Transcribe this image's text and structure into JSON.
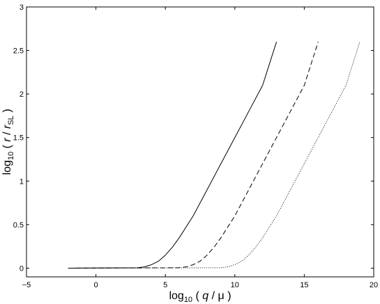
{
  "chart_data": {
    "type": "line",
    "xlabel": {
      "prefix": "log",
      "subscript": "10",
      "open": " ( ",
      "var1": "q",
      "sep": " / ",
      "var2": "μ",
      "close": " )"
    },
    "ylabel": {
      "prefix": "log",
      "subscript": "10",
      "open": " ( ",
      "var1": "r",
      "sep": " / ",
      "var2": "r",
      "var2_sub": "SL",
      "close": " )"
    },
    "xlim": [
      -5,
      20
    ],
    "ylim": [
      -0.1,
      3
    ],
    "x_ticks": [
      -5,
      0,
      5,
      10,
      15,
      20
    ],
    "x_tick_labels": [
      "−5",
      "0",
      "5",
      "10",
      "15",
      "20"
    ],
    "y_ticks": [
      0,
      0.5,
      1,
      1.5,
      2,
      2.5,
      3
    ],
    "y_tick_labels": [
      "0",
      "0.5",
      "1",
      "1.5",
      "2",
      "2.5",
      "3"
    ],
    "grid": false,
    "legend": "none",
    "series": [
      {
        "style": "solid",
        "color": "#000000",
        "x": [
          -2,
          3,
          3.5,
          4,
          4.5,
          5,
          5.5,
          6,
          7,
          8,
          9,
          10,
          11,
          12,
          13
        ],
        "y": [
          0,
          0.005,
          0.015,
          0.04,
          0.08,
          0.15,
          0.24,
          0.35,
          0.6,
          0.9,
          1.2,
          1.5,
          1.8,
          2.1,
          2.6
        ]
      },
      {
        "style": "dashed",
        "color": "#000000",
        "x": [
          -2,
          6,
          6.5,
          7,
          7.5,
          8,
          8.5,
          9,
          10,
          11,
          12,
          13,
          14,
          15,
          16
        ],
        "y": [
          0,
          0.005,
          0.015,
          0.04,
          0.08,
          0.15,
          0.24,
          0.35,
          0.6,
          0.9,
          1.2,
          1.5,
          1.8,
          2.1,
          2.6
        ]
      },
      {
        "style": "dotted",
        "color": "#000000",
        "x": [
          -2,
          9,
          9.5,
          10,
          10.5,
          11,
          11.5,
          12,
          13,
          14,
          15,
          16,
          17,
          18,
          19
        ],
        "y": [
          0,
          0.005,
          0.015,
          0.04,
          0.08,
          0.15,
          0.24,
          0.35,
          0.6,
          0.9,
          1.2,
          1.5,
          1.8,
          2.1,
          2.6
        ]
      }
    ]
  }
}
